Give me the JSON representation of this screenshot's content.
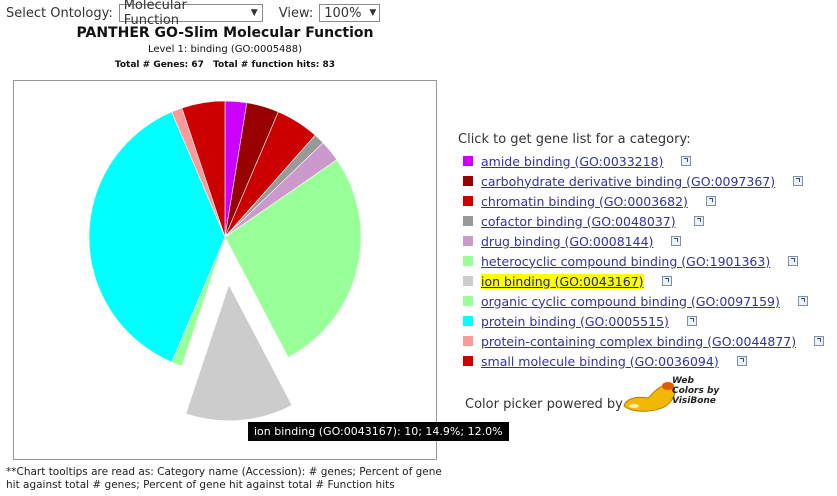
{
  "controls": {
    "ontology_label": "Select Ontology:",
    "ontology_value": "Molecular Function",
    "view_label": "View:",
    "view_value": "100%"
  },
  "header": {
    "title": "PANTHER GO-Slim Molecular Function",
    "level": "Level 1: binding (GO:0005488)",
    "total_genes": "Total # Genes: 67",
    "total_hits": "Total # function hits: 83"
  },
  "tooltip": "ion binding (GO:0043167): 10; 14.9%; 12.0%",
  "footnote": "**Chart tooltips are read as: Category name (Accession): # genes; Percent of gene hit against total # genes; Percent of gene hit against total # Function hits",
  "legend": {
    "title": "Click to get gene list for a category:",
    "items": [
      {
        "label": "amide binding (GO:0033218)",
        "color": "#cc00ff"
      },
      {
        "label": "carbohydrate derivative binding (GO:0097367)",
        "color": "#990000"
      },
      {
        "label": "chromatin binding (GO:0003682)",
        "color": "#cc0000"
      },
      {
        "label": "cofactor binding (GO:0048037)",
        "color": "#999999"
      },
      {
        "label": "drug binding (GO:0008144)",
        "color": "#cc99cc"
      },
      {
        "label": "heterocyclic compound binding (GO:1901363)",
        "color": "#99ff99"
      },
      {
        "label": "ion binding (GO:0043167)",
        "color": "#cccccc",
        "highlighted": true
      },
      {
        "label": "organic cyclic compound binding (GO:0097159)",
        "color": "#99ff99"
      },
      {
        "label": "protein binding (GO:0005515)",
        "color": "#00ffff"
      },
      {
        "label": "protein-containing complex binding (GO:0044877)",
        "color": "#ff9999"
      },
      {
        "label": "small molecule binding (GO:0036094)",
        "color": "#cc0000"
      }
    ]
  },
  "credit": {
    "text": "Color picker powered by",
    "logo_line1": "Web",
    "logo_line2": "Colors by",
    "logo_line3": "VisiBone"
  },
  "chart_data": {
    "type": "pie",
    "title": "PANTHER GO-Slim Molecular Function",
    "exploded": "ion binding (GO:0043167)",
    "slices": [
      {
        "label": "amide binding (GO:0033218)",
        "value": 2,
        "color": "#cc00ff"
      },
      {
        "label": "carbohydrate derivative binding (GO:0097367)",
        "value": 3,
        "color": "#990000"
      },
      {
        "label": "chromatin binding (GO:0003682)",
        "value": 4,
        "color": "#cc0000"
      },
      {
        "label": "cofactor binding (GO:0048037)",
        "value": 1,
        "color": "#999999"
      },
      {
        "label": "drug binding (GO:0008144)",
        "value": 2,
        "color": "#cc99cc"
      },
      {
        "label": "heterocyclic compound binding (GO:1901363)",
        "value": 21,
        "color": "#99ff99"
      },
      {
        "label": "ion binding (GO:0043167)",
        "value": 10,
        "color": "#cccccc"
      },
      {
        "label": "organic cyclic compound binding (GO:0097159)",
        "value": 1,
        "color": "#99ff99"
      },
      {
        "label": "protein binding (GO:0005515)",
        "value": 29,
        "color": "#00ffff"
      },
      {
        "label": "protein-containing complex binding (GO:0044877)",
        "value": 1,
        "color": "#ff9999"
      },
      {
        "label": "small molecule binding (GO:0036094)",
        "value": 4,
        "color": "#cc0000"
      }
    ]
  }
}
